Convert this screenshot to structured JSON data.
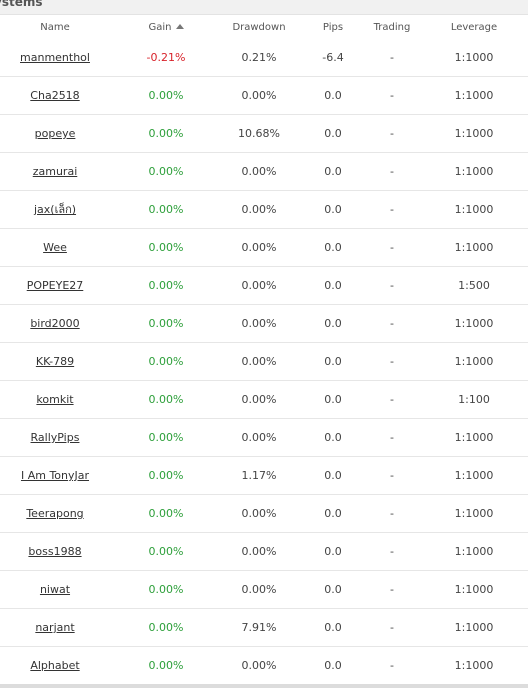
{
  "panel": {
    "title": "ystems"
  },
  "table": {
    "headers": {
      "name": "Name",
      "gain": "Gain",
      "drawdown": "Drawdown",
      "pips": "Pips",
      "trading": "Trading",
      "leverage": "Leverage"
    },
    "sort": {
      "column": "gain",
      "direction": "asc"
    },
    "rows": [
      {
        "name": "manmenthol",
        "gain": "-0.21%",
        "gain_sign": "neg",
        "drawdown": "0.21%",
        "pips": "-6.4",
        "trading": "-",
        "leverage": "1:1000"
      },
      {
        "name": "Cha2518",
        "gain": "0.00%",
        "gain_sign": "zero",
        "drawdown": "0.00%",
        "pips": "0.0",
        "trading": "-",
        "leverage": "1:1000"
      },
      {
        "name": "popeye",
        "gain": "0.00%",
        "gain_sign": "zero",
        "drawdown": "10.68%",
        "pips": "0.0",
        "trading": "-",
        "leverage": "1:1000"
      },
      {
        "name": "zamurai",
        "gain": "0.00%",
        "gain_sign": "zero",
        "drawdown": "0.00%",
        "pips": "0.0",
        "trading": "-",
        "leverage": "1:1000"
      },
      {
        "name": "jax(เล็ก)",
        "gain": "0.00%",
        "gain_sign": "zero",
        "drawdown": "0.00%",
        "pips": "0.0",
        "trading": "-",
        "leverage": "1:1000"
      },
      {
        "name": "Wee",
        "gain": "0.00%",
        "gain_sign": "zero",
        "drawdown": "0.00%",
        "pips": "0.0",
        "trading": "-",
        "leverage": "1:1000"
      },
      {
        "name": "POPEYE27",
        "gain": "0.00%",
        "gain_sign": "zero",
        "drawdown": "0.00%",
        "pips": "0.0",
        "trading": "-",
        "leverage": "1:500"
      },
      {
        "name": "bird2000",
        "gain": "0.00%",
        "gain_sign": "zero",
        "drawdown": "0.00%",
        "pips": "0.0",
        "trading": "-",
        "leverage": "1:1000"
      },
      {
        "name": "KK-789",
        "gain": "0.00%",
        "gain_sign": "zero",
        "drawdown": "0.00%",
        "pips": "0.0",
        "trading": "-",
        "leverage": "1:1000"
      },
      {
        "name": "komkit",
        "gain": "0.00%",
        "gain_sign": "zero",
        "drawdown": "0.00%",
        "pips": "0.0",
        "trading": "-",
        "leverage": "1:100"
      },
      {
        "name": "RallyPips",
        "gain": "0.00%",
        "gain_sign": "zero",
        "drawdown": "0.00%",
        "pips": "0.0",
        "trading": "-",
        "leverage": "1:1000"
      },
      {
        "name": "I Am TonyJar",
        "gain": "0.00%",
        "gain_sign": "zero",
        "drawdown": "1.17%",
        "pips": "0.0",
        "trading": "-",
        "leverage": "1:1000"
      },
      {
        "name": "Teerapong",
        "gain": "0.00%",
        "gain_sign": "zero",
        "drawdown": "0.00%",
        "pips": "0.0",
        "trading": "-",
        "leverage": "1:1000"
      },
      {
        "name": "boss1988",
        "gain": "0.00%",
        "gain_sign": "zero",
        "drawdown": "0.00%",
        "pips": "0.0",
        "trading": "-",
        "leverage": "1:1000"
      },
      {
        "name": "niwat",
        "gain": "0.00%",
        "gain_sign": "zero",
        "drawdown": "0.00%",
        "pips": "0.0",
        "trading": "-",
        "leverage": "1:1000"
      },
      {
        "name": "narjant",
        "gain": "0.00%",
        "gain_sign": "zero",
        "drawdown": "7.91%",
        "pips": "0.0",
        "trading": "-",
        "leverage": "1:1000"
      },
      {
        "name": "Alphabet",
        "gain": "0.00%",
        "gain_sign": "zero",
        "drawdown": "0.00%",
        "pips": "0.0",
        "trading": "-",
        "leverage": "1:1000"
      }
    ]
  },
  "colors": {
    "gain_negative": "#d8222a",
    "gain_zero": "#2d9f3a",
    "header_bg": "#f1f1f1",
    "row_border": "#e6e6e6"
  },
  "icons": {
    "sort": "sort-ascending-icon"
  }
}
